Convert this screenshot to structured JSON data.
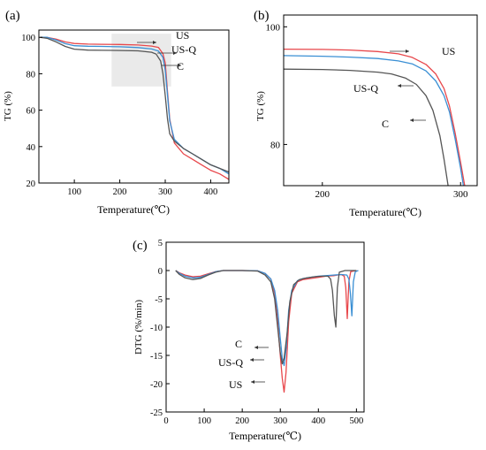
{
  "colors": {
    "US": "#e8474b",
    "US-Q": "#3a8fd4",
    "C": "#555555",
    "highlight": "#e6e6e6"
  },
  "chart_data": [
    {
      "panel": "(a)",
      "type": "line",
      "xlabel": "Temperature(℃)",
      "ylabel": "TG (%)",
      "xlim": [
        22,
        440
      ],
      "ylim": [
        20,
        104
      ],
      "xticks": [
        "100",
        "200",
        "300",
        "400"
      ],
      "yticks": [
        "20",
        "40",
        "60",
        "80",
        "100"
      ],
      "highlight_box": {
        "x": [
          182,
          313
        ],
        "y": [
          73,
          102
        ]
      },
      "legend": [
        "US",
        "US-Q",
        "C"
      ],
      "series": [
        {
          "name": "US",
          "color": "#e8474b",
          "x": [
            25,
            40,
            60,
            80,
            100,
            130,
            160,
            200,
            240,
            270,
            285,
            295,
            300,
            305,
            310,
            320,
            340,
            360,
            380,
            400,
            420,
            440
          ],
          "y": [
            100,
            100,
            99,
            97.5,
            96.6,
            96.3,
            96.2,
            96.1,
            95.8,
            95.2,
            94.5,
            91,
            86,
            70,
            55,
            42,
            36,
            33,
            30,
            27,
            25,
            22
          ]
        },
        {
          "name": "US-Q",
          "color": "#3a8fd4",
          "x": [
            25,
            40,
            60,
            80,
            100,
            130,
            160,
            200,
            240,
            270,
            285,
            295,
            300,
            305,
            310,
            320,
            340,
            360,
            380,
            400,
            420,
            440
          ],
          "y": [
            100,
            100,
            98.5,
            96.5,
            95.4,
            95.1,
            95,
            94.8,
            94.4,
            93.6,
            92.5,
            89,
            82,
            68,
            54,
            44,
            39,
            36,
            33,
            30,
            28,
            25
          ]
        },
        {
          "name": "C",
          "color": "#555555",
          "x": [
            25,
            40,
            60,
            80,
            100,
            130,
            160,
            200,
            240,
            270,
            280,
            290,
            295,
            300,
            305,
            310,
            320,
            340,
            360,
            380,
            400,
            420,
            440
          ],
          "y": [
            100,
            99.5,
            97.5,
            95,
            93.5,
            93,
            92.9,
            92.8,
            92.6,
            91.8,
            90.8,
            87,
            80,
            68,
            55,
            47,
            43,
            39,
            36,
            33,
            30,
            28,
            26
          ]
        }
      ]
    },
    {
      "panel": "(b)",
      "type": "line",
      "xlabel": "Temperature(℃)",
      "ylabel": "TG (%)",
      "xlim": [
        172,
        312
      ],
      "ylim": [
        73,
        102
      ],
      "xticks": [
        "200",
        "300"
      ],
      "yticks": [
        "80",
        "100"
      ],
      "legend": [
        "US",
        "US-Q",
        "C"
      ],
      "series": [
        {
          "name": "US",
          "color": "#e8474b",
          "x": [
            172,
            200,
            220,
            240,
            255,
            265,
            275,
            282,
            288,
            292,
            296,
            300,
            303
          ],
          "y": [
            96.2,
            96.15,
            96.05,
            95.8,
            95.4,
            94.8,
            93.6,
            92,
            89.5,
            86.5,
            82,
            77,
            73
          ]
        },
        {
          "name": "US-Q",
          "color": "#3a8fd4",
          "x": [
            172,
            200,
            220,
            240,
            255,
            265,
            275,
            282,
            288,
            292,
            296,
            300,
            302
          ],
          "y": [
            95.1,
            95,
            94.85,
            94.6,
            94.2,
            93.7,
            92.5,
            90.8,
            88.3,
            85.5,
            81,
            76,
            73
          ]
        },
        {
          "name": "C",
          "color": "#555555",
          "x": [
            172,
            200,
            220,
            240,
            250,
            260,
            268,
            275,
            280,
            285,
            288,
            291
          ],
          "y": [
            92.8,
            92.75,
            92.6,
            92.3,
            92,
            91.3,
            90.2,
            88.3,
            85.8,
            81.5,
            77.5,
            73
          ]
        }
      ]
    },
    {
      "panel": "(c)",
      "type": "line",
      "xlabel": "Temperature(℃)",
      "ylabel": "DTG (%/min)",
      "xlim": [
        0,
        520
      ],
      "ylim": [
        -25,
        5
      ],
      "xticks": [
        "0",
        "100",
        "200",
        "300",
        "400",
        "500"
      ],
      "yticks": [
        "5",
        "0",
        "-5",
        "-10",
        "-15",
        "-20",
        "-25"
      ],
      "legend": [
        "C",
        "US-Q",
        "US"
      ],
      "series": [
        {
          "name": "US",
          "color": "#e8474b",
          "x": [
            25,
            35,
            50,
            70,
            90,
            110,
            130,
            150,
            200,
            240,
            260,
            275,
            285,
            293,
            300,
            305,
            310,
            315,
            322,
            330,
            345,
            360,
            380,
            400,
            420,
            440,
            450,
            460,
            468,
            472,
            476,
            480,
            485,
            500
          ],
          "y": [
            0,
            -0.4,
            -0.8,
            -1.1,
            -1,
            -0.6,
            -0.2,
            0,
            0,
            -0.05,
            -0.5,
            -1.5,
            -4,
            -9,
            -15,
            -19,
            -21.5,
            -18,
            -9,
            -4,
            -2,
            -1.6,
            -1.4,
            -1.2,
            -1,
            -0.9,
            -0.8,
            -0.7,
            -1,
            -3,
            -8.5,
            -2,
            -0.2,
            0
          ]
        },
        {
          "name": "US-Q",
          "color": "#3a8fd4",
          "x": [
            25,
            35,
            50,
            70,
            90,
            110,
            130,
            150,
            200,
            240,
            260,
            275,
            285,
            293,
            300,
            305,
            310,
            315,
            322,
            330,
            345,
            360,
            380,
            400,
            420,
            440,
            460,
            475,
            480,
            484,
            488,
            492,
            497,
            505
          ],
          "y": [
            0,
            -0.5,
            -1,
            -1.3,
            -1.2,
            -0.7,
            -0.2,
            0,
            0,
            -0.05,
            -0.5,
            -1.5,
            -3.5,
            -7,
            -12,
            -15.5,
            -16.8,
            -14,
            -7,
            -3.5,
            -1.8,
            -1.4,
            -1.2,
            -1,
            -0.9,
            -0.8,
            -0.7,
            -0.8,
            -1.5,
            -4,
            -8,
            -2,
            -0.2,
            0
          ]
        },
        {
          "name": "C",
          "color": "#555555",
          "x": [
            25,
            35,
            50,
            70,
            90,
            110,
            130,
            150,
            200,
            240,
            260,
            275,
            285,
            293,
            300,
            305,
            310,
            318,
            325,
            335,
            350,
            370,
            390,
            410,
            425,
            432,
            437,
            442,
            446,
            450,
            455,
            470,
            500
          ],
          "y": [
            0,
            -0.7,
            -1.3,
            -1.6,
            -1.4,
            -0.8,
            -0.3,
            0,
            0,
            -0.1,
            -0.8,
            -2,
            -5,
            -10,
            -14.5,
            -16.5,
            -15.5,
            -11,
            -5.5,
            -2.5,
            -1.6,
            -1.3,
            -1.1,
            -1,
            -1,
            -1.5,
            -3.5,
            -8,
            -10,
            -3,
            -0.3,
            0,
            0
          ]
        }
      ]
    }
  ]
}
